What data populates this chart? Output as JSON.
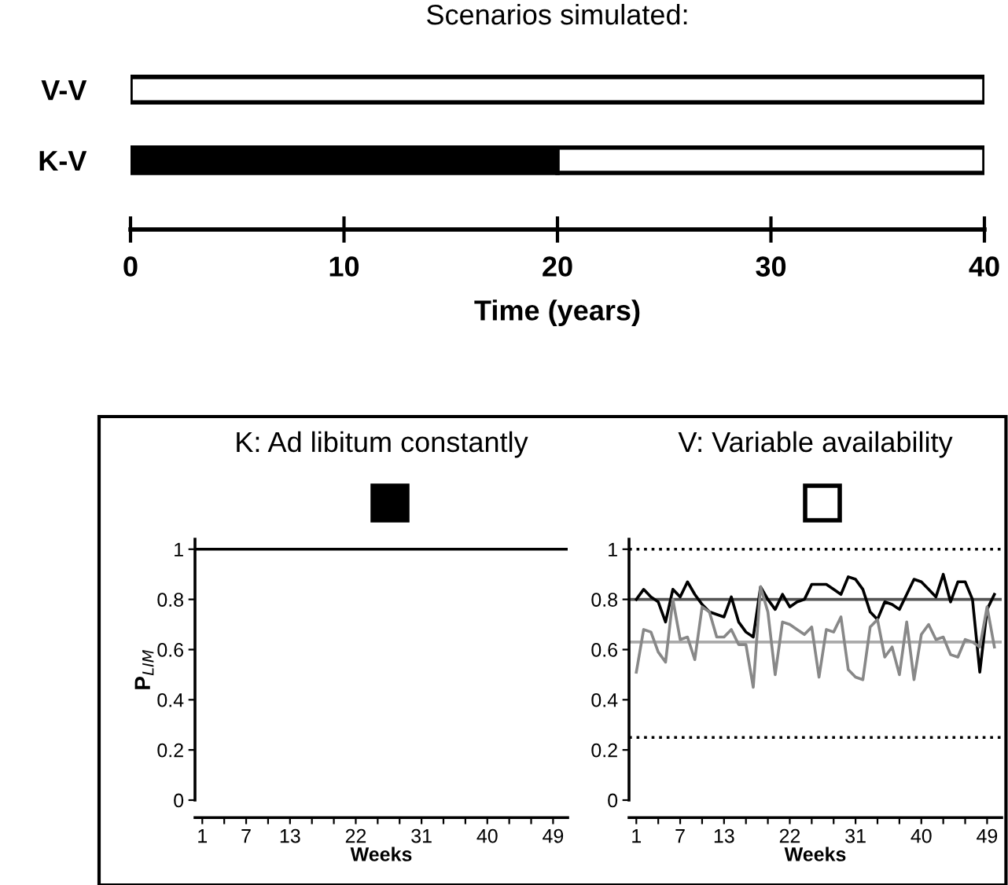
{
  "chart_data": [
    {
      "type": "bar",
      "orientation": "horizontal",
      "stacked": true,
      "title": "Scenarios simulated:",
      "xlabel": "Time (years)",
      "categories": [
        "V-V",
        "K-V"
      ],
      "series": [
        {
          "color": "#000000",
          "values": [
            null,
            20
          ]
        },
        {
          "color": "#ffffff",
          "values": [
            40,
            20
          ]
        }
      ],
      "xlim": [
        0,
        40
      ],
      "xticks": [
        0,
        10,
        20,
        30,
        40
      ]
    },
    {
      "type": "line",
      "title": "K: Ad libitum constantly",
      "xlabel": "Weeks",
      "ylabel": "P$_{LIM}$",
      "series": [
        {
          "color": "#000000",
          "x": [
            0,
            51
          ],
          "values": [
            1,
            1
          ]
        }
      ],
      "xlim": [
        0,
        51
      ],
      "ylim": [
        0,
        1.04
      ],
      "xticks": [
        1,
        {
          "value": 4,
          "label": null
        },
        7,
        {
          "value": 10,
          "label": null
        },
        13,
        {
          "value": 16,
          "label": null
        },
        {
          "value": 19,
          "label": null
        },
        22,
        {
          "value": 25,
          "label": null
        },
        {
          "value": 28,
          "label": null
        },
        31,
        {
          "value": 34,
          "label": null
        },
        {
          "value": 37,
          "label": null
        },
        40,
        {
          "value": 43,
          "label": null
        },
        {
          "value": 46,
          "label": null
        },
        49
      ],
      "yticks": [
        0,
        0.2,
        0.4,
        0.6,
        0.8,
        1
      ],
      "grid": false,
      "marker": "none",
      "line_style": "solid"
    },
    {
      "type": "line",
      "title": "V: Variable availability",
      "xlabel": "Weeks",
      "x": [
        1,
        2,
        3,
        4,
        5,
        6,
        7,
        8,
        9,
        10,
        11,
        12,
        13,
        14,
        15,
        16,
        17,
        18,
        19,
        20,
        21,
        22,
        23,
        24,
        25,
        26,
        27,
        28,
        29,
        30,
        31,
        32,
        33,
        34,
        35,
        36,
        37,
        38,
        39,
        40,
        41,
        42,
        43,
        44,
        45,
        46,
        47,
        48,
        49,
        50
      ],
      "series": [
        {
          "color": "#000000",
          "values": [
            0.8,
            0.84,
            0.81,
            0.79,
            0.71,
            0.84,
            0.81,
            0.87,
            0.82,
            0.78,
            0.75,
            0.74,
            0.73,
            0.81,
            0.71,
            0.67,
            0.65,
            0.85,
            0.8,
            0.76,
            0.82,
            0.77,
            0.79,
            0.8,
            0.86,
            0.86,
            0.86,
            0.84,
            0.82,
            0.89,
            0.88,
            0.84,
            0.75,
            0.72,
            0.79,
            0.78,
            0.76,
            0.82,
            0.88,
            0.87,
            0.84,
            0.81,
            0.9,
            0.79,
            0.87,
            0.87,
            0.8,
            0.51,
            0.76,
            0.82
          ]
        },
        {
          "color": "#888888",
          "values": [
            0.51,
            0.68,
            0.67,
            0.59,
            0.55,
            0.8,
            0.64,
            0.65,
            0.56,
            0.77,
            0.75,
            0.65,
            0.65,
            0.68,
            0.62,
            0.62,
            0.45,
            0.85,
            0.75,
            0.5,
            0.71,
            0.7,
            0.68,
            0.66,
            0.69,
            0.49,
            0.68,
            0.67,
            0.73,
            0.52,
            0.49,
            0.48,
            0.69,
            0.72,
            0.57,
            0.61,
            0.5,
            0.71,
            0.48,
            0.66,
            0.7,
            0.64,
            0.65,
            0.58,
            0.57,
            0.64,
            0.63,
            0.61,
            0.77,
            0.61
          ]
        }
      ],
      "ref_lines": [
        {
          "axis": "y",
          "value": 1,
          "color": "#000000",
          "line_style": "dotted"
        },
        {
          "axis": "y",
          "value": 0.8,
          "color": "#555555",
          "line_style": "solid"
        },
        {
          "axis": "y",
          "value": 0.63,
          "color": "#aaaaaa",
          "line_style": "solid"
        },
        {
          "axis": "y",
          "value": 0.25,
          "color": "#000000",
          "line_style": "dotted"
        }
      ],
      "xlim": [
        0,
        51
      ],
      "ylim": [
        0,
        1.04
      ],
      "xticks": [
        1,
        {
          "value": 4,
          "label": null
        },
        7,
        {
          "value": 10,
          "label": null
        },
        13,
        {
          "value": 16,
          "label": null
        },
        {
          "value": 19,
          "label": null
        },
        22,
        {
          "value": 25,
          "label": null
        },
        {
          "value": 28,
          "label": null
        },
        31,
        {
          "value": 34,
          "label": null
        },
        {
          "value": 37,
          "label": null
        },
        40,
        {
          "value": 43,
          "label": null
        },
        {
          "value": 46,
          "label": null
        },
        49
      ],
      "yticks": [
        0,
        0.2,
        0.4,
        0.6,
        0.8,
        1
      ],
      "grid": false,
      "marker": "none",
      "line_style": "solid"
    }
  ]
}
